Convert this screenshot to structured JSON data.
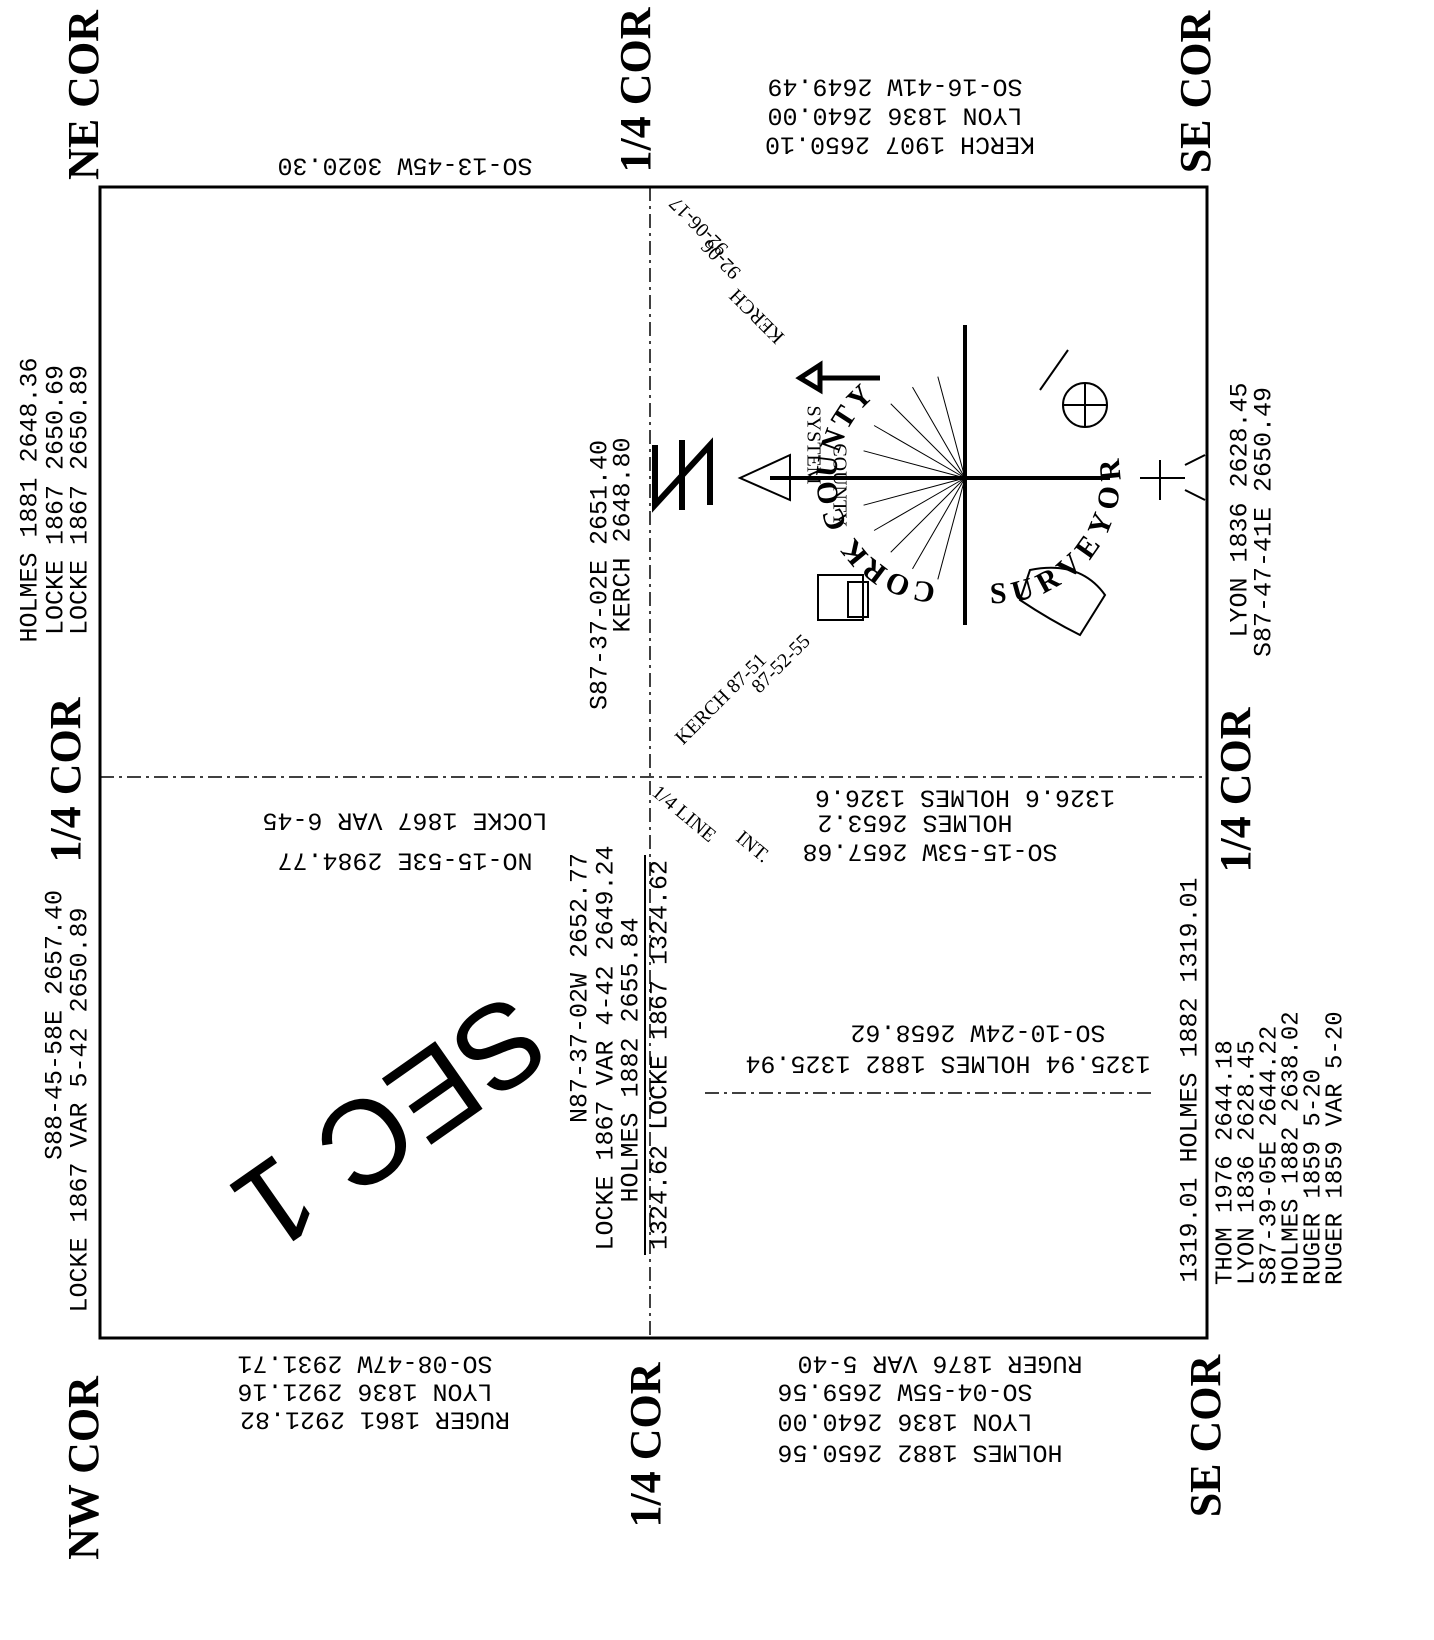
{
  "corners": {
    "ne": "NE COR",
    "nw": "NW COR",
    "se_top": "SE COR",
    "se_bottom": "SE COR",
    "quarter_left": "1/4 COR",
    "quarter_top": "1/4 COR",
    "quarter_right": "1/4 COR",
    "quarter_bottom": "1/4 COR"
  },
  "left_upper": [
    "HOLMES 1881 2648.36",
    "LOCKE 1867 2650.69",
    "LOCKE 1867 2650.89"
  ],
  "left_lower": [
    "S88-45-58E 2657.40",
    "LOCKE 1867 VAR 5-42 2650.89"
  ],
  "top_left": "SO-13-45W 3020.30",
  "top_right": [
    "SO-16-41W 2649.49",
    "LYON 1836 2640.00",
    "KERCH 1907 2650.10"
  ],
  "right_upper": [
    "LYON 1836 2628.45",
    "S87-47-41E 2650.49"
  ],
  "right_lower_inner": "1319.01 HOLMES 1882 1319.01",
  "right_lower_block": [
    "THOM 1976 2644.18",
    "LYON 1836 2628.45",
    "S87-39-05E 2644.22",
    "HOLMES 1882 2638.02",
    "RUGER 1859 5-20",
    "RUGER 1859 VAR 5-20"
  ],
  "bottom_left": [
    "SO-08-47W 2931.71",
    "LYON 1836 2921.16",
    "RUGER 1861 2921.82"
  ],
  "bottom_right": [
    "RUGER 1876 VAR 5-40",
    "SO-04-55W 2659.56",
    "LYON 1836 2640.00",
    "HOLMES 1882 2650.56"
  ],
  "section": "SEC 1",
  "center_left": [
    "LOCKE 1867 VAR 6-45",
    "NO-15-53E 2984.77"
  ],
  "center_line_lower": [
    "N87-37-02W 2652.77",
    "LOCKE 1867 VAR 4-42 2649.24",
    "HOLMES 1882 2655.84",
    "1324.62 LOCKE 1867 1324.62"
  ],
  "center_line_upper": [
    "S87-37-02E 2651.40",
    "KERCH 2648.80"
  ],
  "lower_right_upper": [
    "1326.6 HOLMES 1326.6",
    "HOLMES 2653.2",
    "SO-15-53W 2657.68"
  ],
  "lower_right_mid": [
    "SO-10-24W 2658.62",
    "1325.94 HOLMES 1882 1325.94"
  ],
  "quarter_line": [
    "1/4 LINE",
    "INT."
  ],
  "logo": {
    "ring_left": "CORK COUNTY",
    "ring_right": "SURVEYOR",
    "system": [
      "COUNTY",
      "SYSTEM"
    ],
    "kerch_top": [
      "KERCH",
      "92-06",
      "92-06-17"
    ],
    "kerch_bottom": [
      "KERCH 87-51",
      "87-52-55"
    ]
  }
}
